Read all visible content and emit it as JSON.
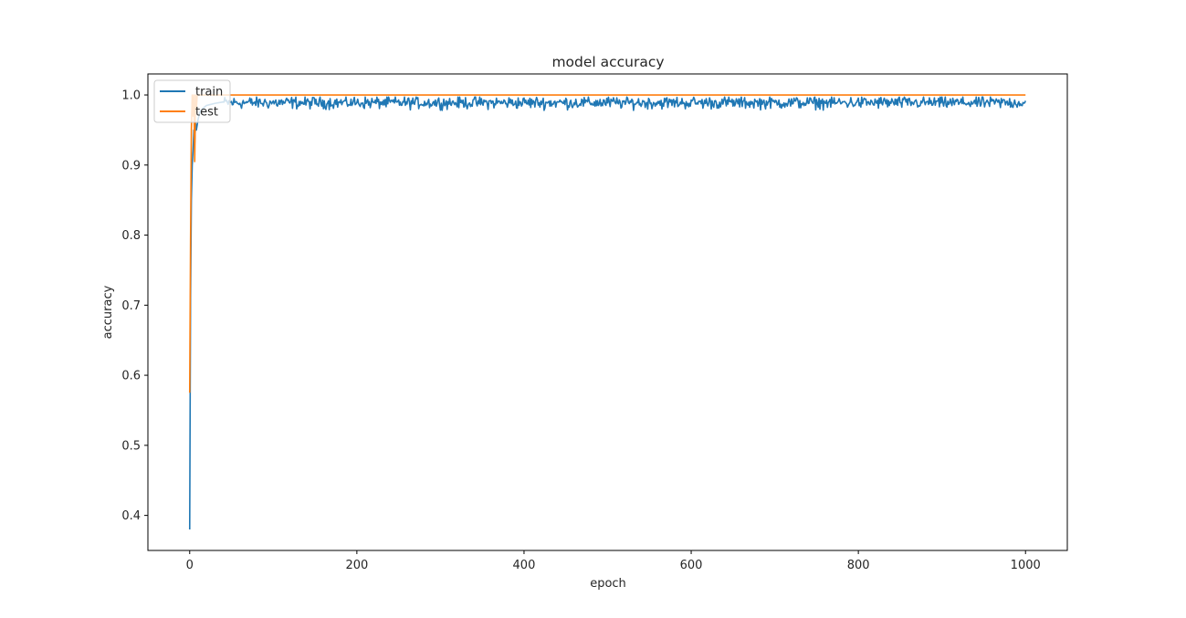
{
  "chart_data": {
    "type": "line",
    "title": "model accuracy",
    "xlabel": "epoch",
    "ylabel": "accuracy",
    "xlim": [
      -50,
      1050
    ],
    "ylim": [
      0.35,
      1.03
    ],
    "xticks": [
      0,
      200,
      400,
      600,
      800,
      1000
    ],
    "yticks": [
      0.4,
      0.5,
      0.6,
      0.7,
      0.8,
      0.9,
      1.0
    ],
    "xtick_labels": [
      "0",
      "200",
      "400",
      "600",
      "800",
      "1000"
    ],
    "ytick_labels": [
      "0.4",
      "0.5",
      "0.6",
      "0.7",
      "0.8",
      "0.9",
      "1.0"
    ],
    "grid": false,
    "legend_position": "upper-left",
    "series": [
      {
        "name": "train",
        "color": "#1f77b4",
        "x": [
          0,
          1,
          2,
          3,
          4,
          5,
          6,
          7,
          8,
          10,
          12,
          15,
          20,
          30,
          40,
          1000
        ],
        "values": [
          0.38,
          0.71,
          0.85,
          0.9,
          0.92,
          0.95,
          0.93,
          0.96,
          0.95,
          0.965,
          0.975,
          0.98,
          0.985,
          0.988,
          0.99,
          0.99
        ],
        "noise": {
          "from_epoch": 40,
          "to_epoch": 1000,
          "mean": 0.989,
          "min": 0.978,
          "max": 0.997
        }
      },
      {
        "name": "test",
        "color": "#ff7f0e",
        "x": [
          0,
          1,
          2,
          3,
          4,
          5,
          6,
          7,
          8,
          9,
          10,
          12,
          1000
        ],
        "values": [
          0.575,
          0.79,
          0.95,
          1.0,
          0.97,
          1.0,
          0.905,
          1.0,
          0.98,
          1.0,
          1.0,
          1.0,
          1.0
        ]
      }
    ]
  }
}
